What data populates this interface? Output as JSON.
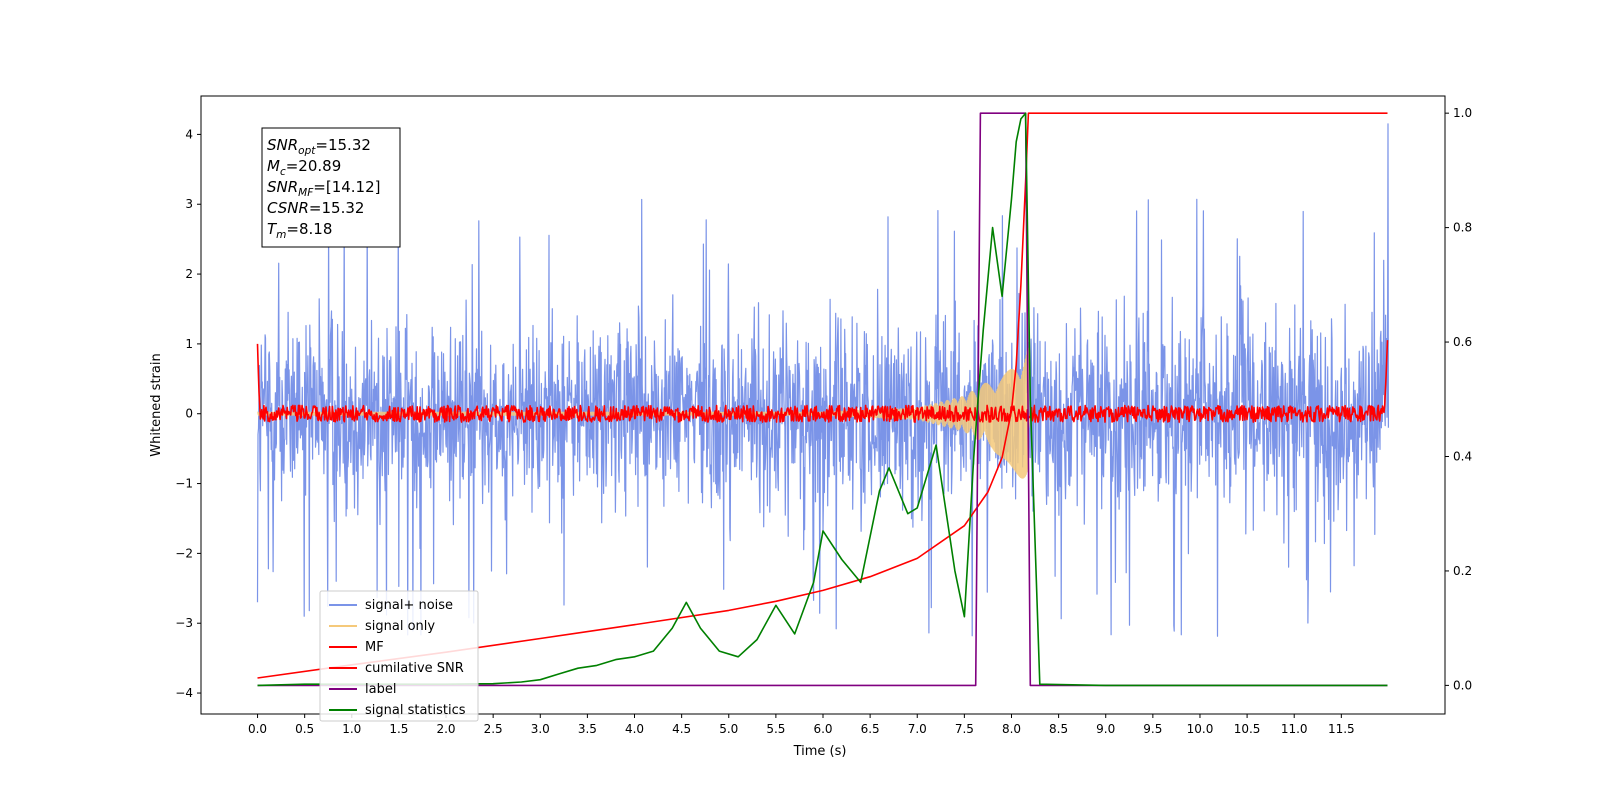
{
  "chart_data": {
    "type": "line",
    "title": "",
    "xlabel": "Time (s)",
    "ylabel": "Whitened strain",
    "xlim": [
      -0.6,
      12.6
    ],
    "ylim": [
      -4.3,
      4.55
    ],
    "ylim_right": [
      -0.05,
      1.03
    ],
    "xticks": [
      0.0,
      0.5,
      1.0,
      1.5,
      2.0,
      2.5,
      3.0,
      3.5,
      4.0,
      4.5,
      5.0,
      5.5,
      6.0,
      6.5,
      7.0,
      7.5,
      8.0,
      8.5,
      9.0,
      9.5,
      10.0,
      10.5,
      11.0,
      11.5
    ],
    "xtick_labels": [
      "0.0",
      "0.5",
      "1.0",
      "1.5",
      "2.0",
      "2.5",
      "3.0",
      "3.5",
      "4.0",
      "4.5",
      "5.0",
      "5.5",
      "6.0",
      "6.5",
      "7.0",
      "7.5",
      "8.0",
      "8.5",
      "9.0",
      "9.5",
      "10.0",
      "10.5",
      "11.0",
      "11.5"
    ],
    "yticks": [
      -4,
      -3,
      -2,
      -1,
      0,
      1,
      2,
      3,
      4
    ],
    "ytick_labels": [
      "−4",
      "−3",
      "−2",
      "−1",
      "0",
      "1",
      "2",
      "3",
      "4"
    ],
    "yticks_right": [
      0.0,
      0.2,
      0.4,
      0.6,
      0.8,
      1.0
    ],
    "ytick_labels_right": [
      "0.0",
      "0.2",
      "0.4",
      "0.6",
      "0.8",
      "1.0"
    ],
    "legend_position": "lower-left",
    "grid": false,
    "info_box": {
      "lines": [
        {
          "main": "SNR",
          "sub": "opt",
          "value": "=15.32"
        },
        {
          "main": "M",
          "sub": "c",
          "value": "=20.89"
        },
        {
          "main": "SNR",
          "sub": "MF",
          "value": "=[14.12]"
        },
        {
          "main": "CSNR",
          "sub": "",
          "value": "=15.32"
        },
        {
          "main": "T",
          "sub": "m",
          "value": "=8.18"
        }
      ]
    },
    "series": [
      {
        "name": "signal+ noise",
        "color": "#7b94e8",
        "axis": "left",
        "kind": "noise",
        "x_range": [
          0.0,
          11.99
        ],
        "band": [
          -1.9,
          1.9
        ],
        "peaks": [
          -3.3,
          3.25
        ]
      },
      {
        "name": "signal only",
        "color": "#f5c97a",
        "axis": "left",
        "kind": "chirp",
        "x_range": [
          0.0,
          8.18
        ],
        "envelope": [
          [
            6.0,
            0.02
          ],
          [
            7.0,
            0.08
          ],
          [
            7.5,
            0.25
          ],
          [
            7.8,
            0.5
          ],
          [
            8.0,
            0.8
          ],
          [
            8.18,
            1.0
          ]
        ]
      },
      {
        "name": "MF",
        "color": "#ff0000",
        "axis": "left",
        "kind": "mf",
        "x_range": [
          0.0,
          11.99
        ],
        "start": 1.0,
        "end": 0.95,
        "noise_amp": 0.12
      },
      {
        "name": "cumilative SNR",
        "color": "#ff0000",
        "axis": "right",
        "x": [
          0.0,
          1.0,
          2.0,
          3.0,
          4.0,
          5.0,
          5.5,
          6.0,
          6.5,
          7.0,
          7.5,
          7.75,
          7.9,
          8.0,
          8.05,
          8.1,
          8.15,
          8.18,
          8.2,
          11.99
        ],
        "values": [
          0.013,
          0.036,
          0.058,
          0.082,
          0.106,
          0.131,
          0.147,
          0.166,
          0.19,
          0.222,
          0.279,
          0.338,
          0.398,
          0.48,
          0.56,
          0.7,
          0.88,
          1.0,
          1.0,
          1.0
        ]
      },
      {
        "name": "label",
        "color": "#800080",
        "axis": "right",
        "x": [
          0.0,
          7.62,
          7.67,
          8.15,
          8.2,
          11.99
        ],
        "values": [
          0.0,
          0.0,
          1.0,
          1.0,
          0.0,
          0.0
        ]
      },
      {
        "name": "signal statistics",
        "color": "#008000",
        "axis": "right",
        "x": [
          0.0,
          0.5,
          1.0,
          1.5,
          2.0,
          2.5,
          2.8,
          3.0,
          3.2,
          3.4,
          3.6,
          3.8,
          4.0,
          4.2,
          4.4,
          4.55,
          4.7,
          4.9,
          5.1,
          5.3,
          5.5,
          5.7,
          5.9,
          6.0,
          6.2,
          6.4,
          6.6,
          6.7,
          6.9,
          7.0,
          7.2,
          7.4,
          7.5,
          7.6,
          7.7,
          7.8,
          7.9,
          8.0,
          8.05,
          8.1,
          8.15,
          8.2,
          8.3,
          9.0,
          10.0,
          11.0,
          11.99
        ],
        "values": [
          0.0,
          0.002,
          0.002,
          0.002,
          0.002,
          0.003,
          0.006,
          0.01,
          0.02,
          0.03,
          0.035,
          0.045,
          0.05,
          0.06,
          0.1,
          0.145,
          0.1,
          0.06,
          0.05,
          0.08,
          0.14,
          0.09,
          0.18,
          0.27,
          0.22,
          0.18,
          0.34,
          0.38,
          0.3,
          0.31,
          0.42,
          0.2,
          0.12,
          0.4,
          0.62,
          0.8,
          0.68,
          0.85,
          0.95,
          0.99,
          1.0,
          0.5,
          0.002,
          0.0,
          0.0,
          0.0,
          0.0
        ]
      }
    ]
  }
}
